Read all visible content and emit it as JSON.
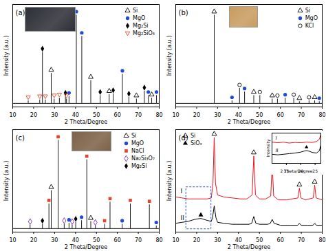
{
  "chart_data": [
    {
      "type": "stick",
      "title": "(a)",
      "x_label": "2 Theta/Degree",
      "y_label": "Intensity (a.u.)",
      "xlim": [
        10,
        80
      ],
      "xticks": [
        10,
        20,
        30,
        40,
        50,
        60,
        70,
        80
      ],
      "ylim": [
        -4,
        112
      ],
      "tick_labels": "x",
      "color": "#000000",
      "legend": "top-right",
      "series": [
        {
          "name": "Si",
          "marker": "triangle-open",
          "color": "#000000",
          "x": [
            28.4,
            47.3,
            56.1,
            69.1,
            76.4
          ],
          "values": [
            34,
            26,
            10,
            5,
            6
          ]
        },
        {
          "name": "MgO",
          "marker": "circle",
          "color": "#1f49d6",
          "x": [
            36.9,
            40.4,
            43.0,
            62.4,
            74.8,
            78.7
          ],
          "values": [
            8,
            100,
            76,
            33,
            9,
            9
          ]
        },
        {
          "name": "Mg₂Si",
          "marker": "diamond",
          "color": "#000000",
          "x": [
            24.2,
            35.2,
            51.8,
            58.0,
            65.5,
            72.9
          ],
          "values": [
            58,
            8,
            9,
            11,
            7,
            14
          ]
        },
        {
          "name": "Mg₂SiO₄",
          "marker": "triangle-down-open",
          "color": "#d9472b",
          "x": [
            17.4,
            22.9,
            25.6,
            29.8,
            32.3,
            35.7
          ],
          "values": [
            3,
            4,
            4,
            5,
            6,
            5
          ]
        }
      ]
    },
    {
      "type": "stick",
      "title": "(b)",
      "x_label": "2 Theta/Degree",
      "y_label": "Intensity (a.u.)",
      "xlim": [
        10,
        80
      ],
      "xticks": [
        10,
        20,
        30,
        40,
        50,
        60,
        70,
        80
      ],
      "ylim": [
        -4,
        112
      ],
      "tick_labels": "x",
      "color": "#000000",
      "legend": "top-right",
      "series": [
        {
          "name": "Si",
          "marker": "triangle-open",
          "color": "#000000",
          "x": [
            28.4,
            47.3,
            56.1,
            69.1,
            76.4
          ],
          "values": [
            100,
            9,
            5,
            2,
            3
          ]
        },
        {
          "name": "MgO",
          "marker": "circle",
          "color": "#1f49d6",
          "x": [
            36.9,
            42.9,
            62.3,
            78.6
          ],
          "values": [
            3,
            13,
            6,
            2
          ]
        },
        {
          "name": "KCl",
          "marker": "circle-open",
          "color": "#000000",
          "x": [
            40.5,
            50.2,
            58.6,
            66.4,
            73.7
          ],
          "values": [
            17,
            9,
            5,
            6,
            3
          ]
        }
      ]
    },
    {
      "type": "stick",
      "title": "(c)",
      "x_label": "2 Theta/Degree",
      "y_label": "Intensity (a.u.)",
      "xlim": [
        10,
        80
      ],
      "xticks": [
        10,
        20,
        30,
        40,
        50,
        60,
        70,
        80
      ],
      "ylim": [
        -4,
        112
      ],
      "tick_labels": "x",
      "color": "#000000",
      "legend": "top-right",
      "series": [
        {
          "name": "Si",
          "marker": "triangle-open",
          "color": "#000000",
          "x": [
            28.4,
            47.3
          ],
          "values": [
            43,
            8
          ]
        },
        {
          "name": "MgO",
          "marker": "circle",
          "color": "#1f49d6",
          "x": [
            36.9,
            42.9,
            62.3,
            78.6
          ],
          "values": [
            6,
            9,
            5,
            3
          ]
        },
        {
          "name": "NaCl",
          "marker": "square",
          "color": "#e8412c",
          "x": [
            27.3,
            31.7,
            45.4,
            53.9,
            56.5,
            66.2,
            75.3
          ],
          "values": [
            28,
            100,
            78,
            5,
            30,
            28,
            27
          ]
        },
        {
          "name": "Na₂Si₃O₇",
          "marker": "diamond-open",
          "color": "#7b2fa8",
          "x": [
            18.3,
            34.6,
            38.4,
            49.5
          ],
          "values": [
            4,
            5,
            4,
            3
          ]
        },
        {
          "name": "Mg₂Si",
          "marker": "diamond",
          "color": "#000000",
          "x": [
            24.2,
            40.1
          ],
          "values": [
            5,
            7
          ]
        }
      ]
    },
    {
      "type": "line",
      "title": "(d)",
      "x_label": "2 Theta/Degree",
      "y_label": "Intensity (a.u.)",
      "xlim": [
        10,
        80
      ],
      "xticks": [
        10,
        20,
        30,
        40,
        50,
        60,
        70,
        80
      ],
      "ylim": [
        0,
        105
      ],
      "tick_labels": "x",
      "legend": "top-left",
      "series": [
        {
          "name": "I",
          "color": "#e8141c",
          "x": [
            10,
            13,
            16,
            19,
            22,
            25,
            27,
            27.8,
            28.4,
            29.0,
            30,
            33,
            37,
            41,
            44,
            46.5,
            47.3,
            48.1,
            50,
            53,
            55.4,
            56.1,
            56.8,
            59,
            63,
            68.4,
            69.1,
            69.8,
            72,
            75.7,
            76.4,
            77.1,
            80
          ],
          "values": [
            36,
            35,
            34,
            34,
            34,
            34,
            35,
            50,
            97,
            50,
            38,
            36,
            35,
            34,
            34,
            38,
            78,
            38,
            34,
            34,
            37,
            70,
            37,
            33,
            33,
            35,
            45,
            35,
            33,
            35,
            48,
            35,
            33
          ]
        },
        {
          "name": "II",
          "color": "#000000",
          "x": [
            10,
            13,
            16,
            19,
            22,
            25,
            27,
            27.6,
            28.4,
            29.2,
            30,
            33,
            37,
            41,
            45,
            46.3,
            47.3,
            48.3,
            50,
            54,
            55.2,
            56.1,
            57,
            60,
            65,
            68.3,
            69.1,
            69.9,
            73,
            75.6,
            76.4,
            77.2,
            80
          ],
          "values": [
            9,
            10,
            11,
            13,
            14,
            12,
            11,
            15,
            27,
            15,
            10,
            9,
            8,
            8,
            8,
            9,
            16,
            9,
            8,
            8,
            9,
            13,
            9,
            7,
            7,
            7,
            9,
            7,
            7,
            7,
            9,
            7,
            7
          ]
        }
      ],
      "markers": [
        {
          "name": "Si",
          "marker": "triangle-open",
          "color": "#000000",
          "x": [
            28.4,
            47.3,
            56.1,
            69.1,
            76.4
          ],
          "values": [
            97,
            78,
            70,
            45,
            48
          ]
        },
        {
          "name": "SiOₓ",
          "marker": "triangle",
          "color": "#000000",
          "x": [
            22
          ],
          "values": [
            14
          ]
        }
      ],
      "zoom_box": {
        "x": [
          15,
          27
        ],
        "y": [
          3,
          46
        ]
      }
    },
    {
      "type": "line",
      "x_label": "2 Theta/Degree",
      "y_label": "Intensity",
      "xlim": [
        10,
        27
      ],
      "xticks": [
        15,
        20,
        25
      ],
      "ylim": [
        0,
        100
      ],
      "tick_labels": "x",
      "series": [
        {
          "name": "I",
          "color": "#e8141c",
          "x": [
            10,
            12,
            14,
            16,
            18,
            20,
            22,
            24,
            25.5,
            26.5,
            27
          ],
          "values": [
            70,
            68,
            70,
            67,
            69,
            68,
            70,
            69,
            72,
            80,
            95
          ]
        },
        {
          "name": "II",
          "color": "#000000",
          "x": [
            10,
            12,
            14,
            16,
            18,
            20,
            21,
            22,
            23,
            24,
            25.5,
            26.5,
            27
          ],
          "values": [
            30,
            28,
            30,
            32,
            34,
            37,
            40,
            42,
            40,
            36,
            34,
            42,
            60
          ]
        }
      ],
      "markers": [
        {
          "name": "SiOₓ",
          "marker": "triangle",
          "color": "#000000",
          "x": [
            22
          ],
          "values": [
            42
          ]
        }
      ]
    }
  ]
}
